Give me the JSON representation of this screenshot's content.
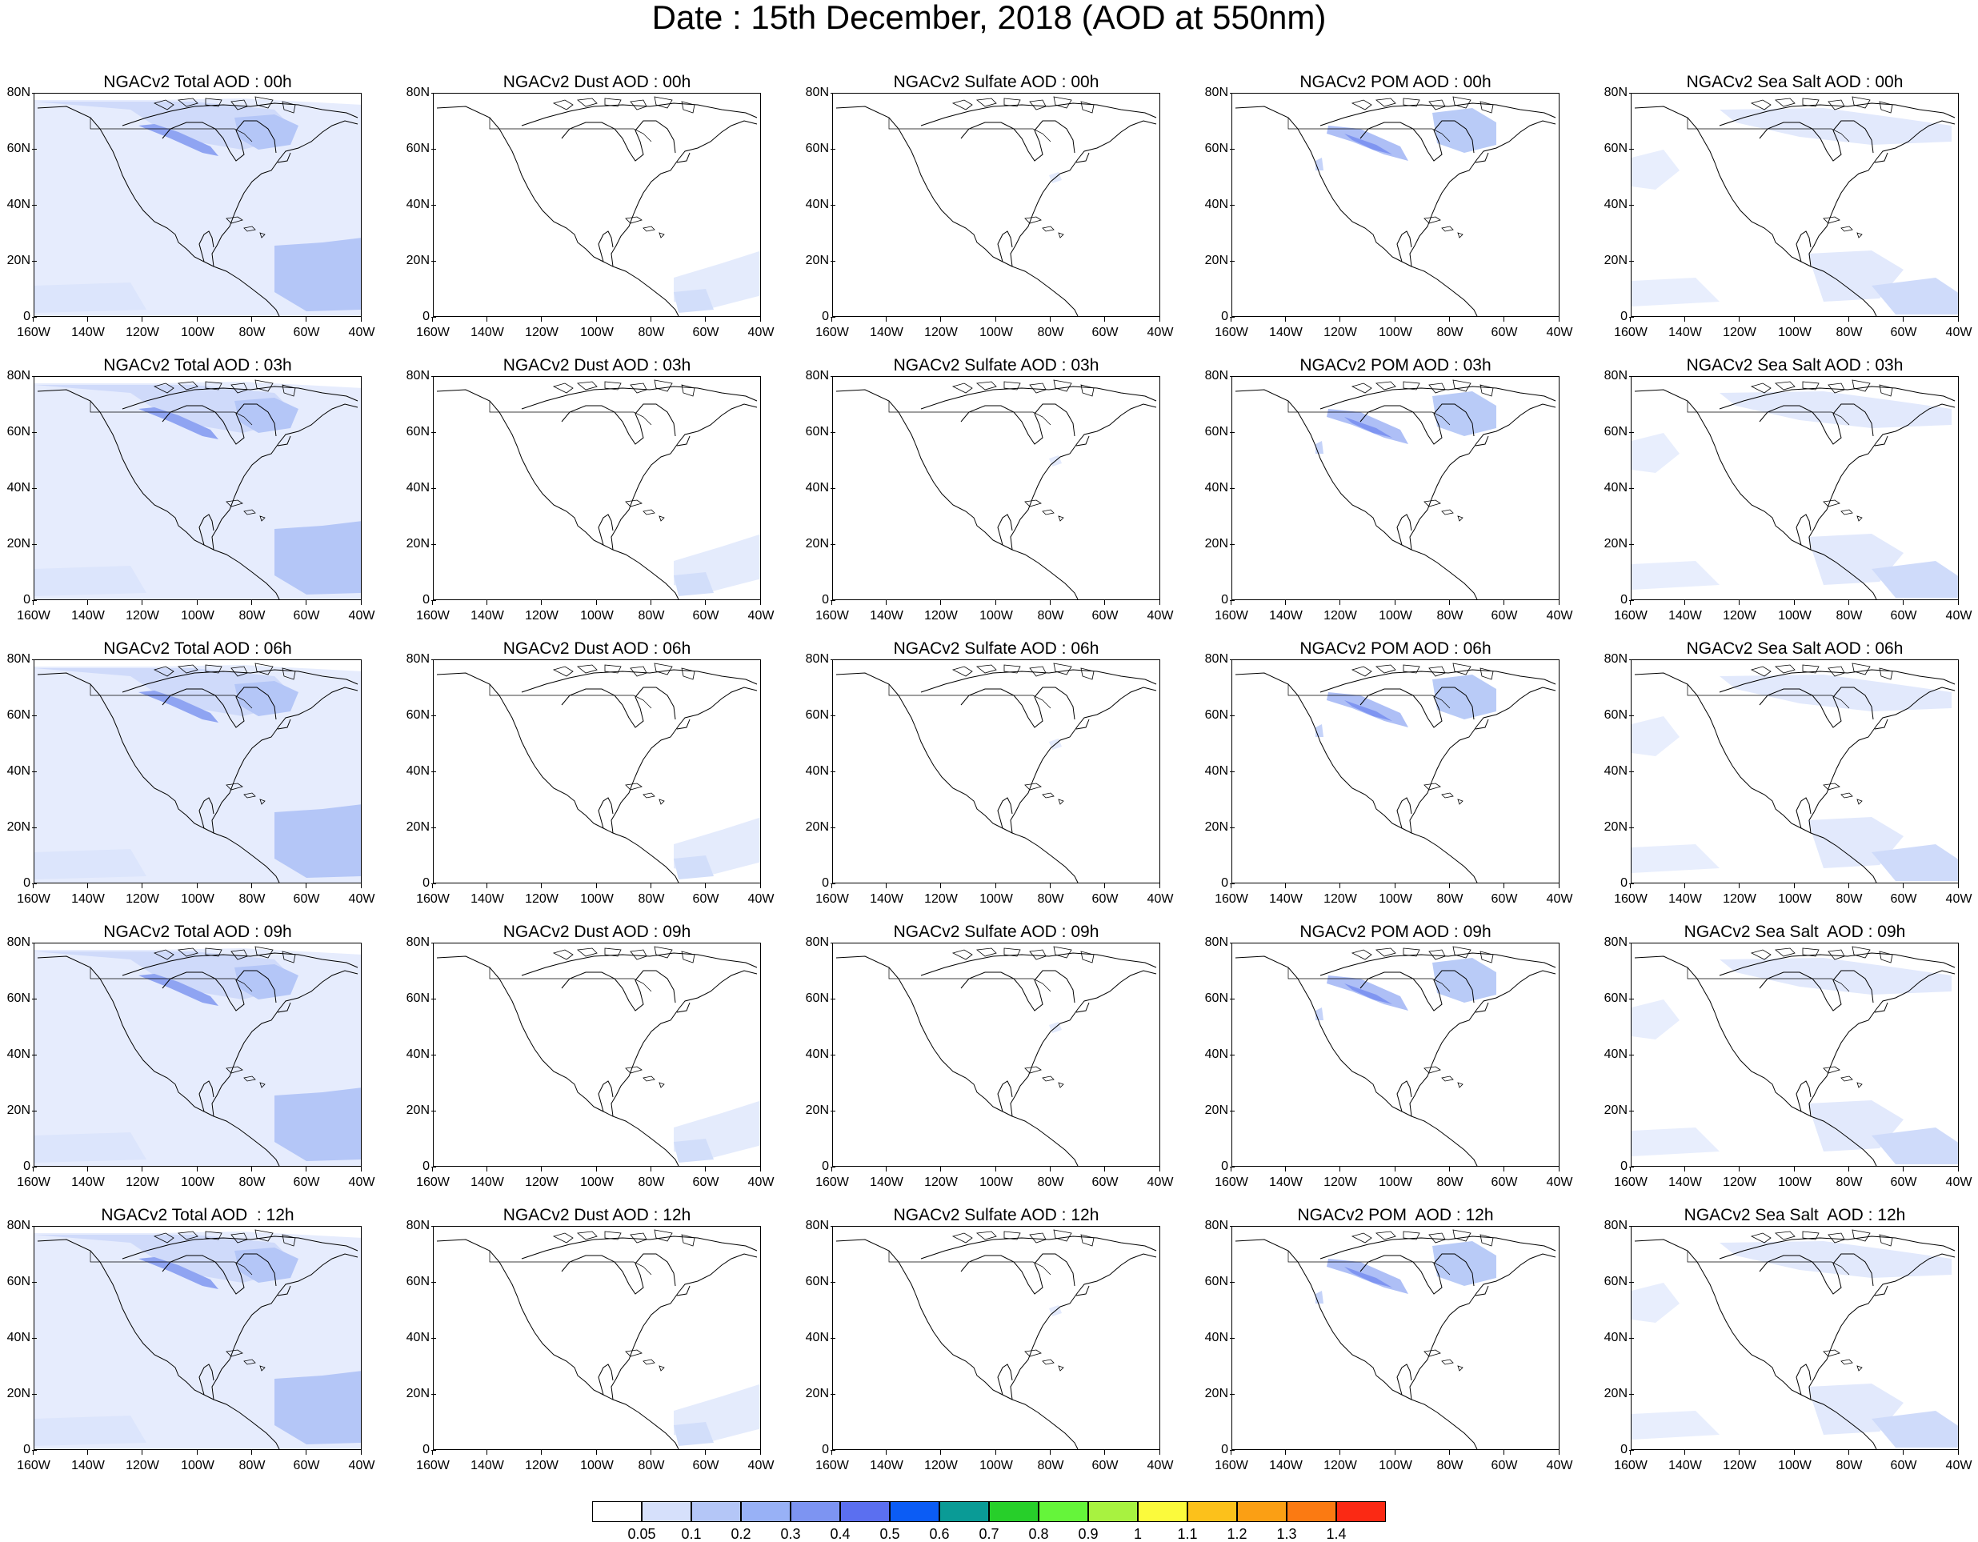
{
  "title": "Date : 15th December, 2018 (AOD at 550nm)",
  "lat_ticks": [
    "80N",
    "60N",
    "40N",
    "20N",
    "0"
  ],
  "lon_ticks": [
    "160W",
    "140W",
    "120W",
    "100W",
    "80W",
    "60W",
    "40W"
  ],
  "columns": [
    {
      "key": "total",
      "titles": [
        "NGACv2 Total AOD : 00h",
        "NGACv2 Total AOD : 03h",
        "NGACv2 Total AOD : 06h",
        "NGACv2 Total AOD : 09h",
        "NGACv2 Total AOD  : 12h"
      ]
    },
    {
      "key": "dust",
      "titles": [
        "NGACv2 Dust AOD : 00h",
        "NGACv2 Dust AOD : 03h",
        "NGACv2 Dust AOD : 06h",
        "NGACv2 Dust AOD : 09h",
        "NGACv2 Dust AOD : 12h"
      ]
    },
    {
      "key": "sulfate",
      "titles": [
        "NGACv2 Sulfate AOD : 00h",
        "NGACv2 Sulfate AOD : 03h",
        "NGACv2 Sulfate AOD : 06h",
        "NGACv2 Sulfate AOD : 09h",
        "NGACv2 Sulfate AOD : 12h"
      ]
    },
    {
      "key": "pom",
      "titles": [
        "NGACv2 POM AOD : 00h",
        "NGACv2 POM AOD : 03h",
        "NGACv2 POM AOD : 06h",
        "NGACv2 POM AOD : 09h",
        "NGACv2 POM  AOD : 12h"
      ]
    },
    {
      "key": "seasalt",
      "titles": [
        "NGACv2 Sea Salt AOD : 00h",
        "NGACv2 Sea Salt AOD : 03h",
        "NGACv2 Sea Salt AOD : 06h",
        "NGACv2 Sea Salt  AOD : 09h",
        "NGACv2 Sea Salt  AOD : 12h"
      ]
    }
  ],
  "colorbar": {
    "labels": [
      "0.05",
      "0.1",
      "0.2",
      "0.3",
      "0.4",
      "0.5",
      "0.6",
      "0.7",
      "0.8",
      "0.9",
      "1",
      "1.1",
      "1.2",
      "1.3",
      "1.4"
    ],
    "colors": [
      "#ffffff",
      "#d6e0fb",
      "#b4c6f7",
      "#98b1f6",
      "#7d94f2",
      "#5b6ff0",
      "#0b5cf5",
      "#0a9b96",
      "#27cf2a",
      "#65f53a",
      "#a8f240",
      "#fbfa3c",
      "#fcc11b",
      "#fb9f14",
      "#fb7a12",
      "#fb2914"
    ]
  }
}
